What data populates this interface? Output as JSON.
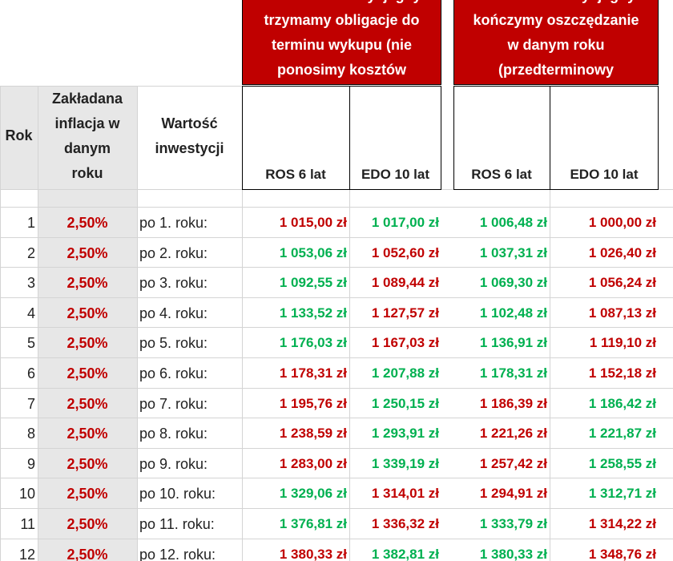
{
  "header": {
    "group_a": {
      "lines": [
        "Wartość inwestycji gdy",
        "trzymamy obligacje  do",
        "terminu wykupu (nie",
        "ponosimy kosztów"
      ]
    },
    "group_b": {
      "lines": [
        "Wartość inwestycji gdy",
        "kończymy oszczędzanie",
        "w danym roku",
        "(przedterminowy"
      ]
    },
    "columns": [
      {
        "lines": [
          "Rok"
        ]
      },
      {
        "lines": [
          "Zakładana",
          "inflacja w",
          "danym",
          "roku"
        ]
      },
      {
        "lines": [
          "Wartość",
          "inwestycji"
        ]
      },
      {
        "lines": [
          "ROS 6 lat"
        ]
      },
      {
        "lines": [
          "EDO 10 lat"
        ]
      },
      {
        "lines": [
          "ROS 6 lat"
        ]
      },
      {
        "lines": [
          "EDO 10 lat"
        ]
      }
    ]
  },
  "table": {
    "rows": [
      {
        "cells": [
          "1",
          "2,50%",
          "po 1. roku:",
          "1 015,00 zł",
          "1 017,00 zł",
          "1 006,48 zł",
          "1 000,00 zł"
        ],
        "colors": [
          "#c00000",
          "#00b050",
          "#00b050",
          "#c00000"
        ]
      },
      {
        "cells": [
          "2",
          "2,50%",
          "po 2. roku:",
          "1 053,06 zł",
          "1 052,60 zł",
          "1 037,31 zł",
          "1 026,40 zł"
        ],
        "colors": [
          "#00b050",
          "#c00000",
          "#00b050",
          "#c00000"
        ]
      },
      {
        "cells": [
          "3",
          "2,50%",
          "po 3. roku:",
          "1 092,55 zł",
          "1 089,44 zł",
          "1 069,30 zł",
          "1 056,24 zł"
        ],
        "colors": [
          "#00b050",
          "#c00000",
          "#00b050",
          "#c00000"
        ]
      },
      {
        "cells": [
          "4",
          "2,50%",
          "po 4. roku:",
          "1 133,52 zł",
          "1 127,57 zł",
          "1 102,48 zł",
          "1 087,13 zł"
        ],
        "colors": [
          "#00b050",
          "#c00000",
          "#00b050",
          "#c00000"
        ]
      },
      {
        "cells": [
          "5",
          "2,50%",
          "po 5. roku:",
          "1 176,03 zł",
          "1 167,03 zł",
          "1 136,91 zł",
          "1 119,10 zł"
        ],
        "colors": [
          "#00b050",
          "#c00000",
          "#00b050",
          "#c00000"
        ]
      },
      {
        "cells": [
          "6",
          "2,50%",
          "po 6. roku:",
          "1 178,31 zł",
          "1 207,88 zł",
          "1 178,31 zł",
          "1 152,18 zł"
        ],
        "colors": [
          "#c00000",
          "#00b050",
          "#00b050",
          "#c00000"
        ]
      },
      {
        "cells": [
          "7",
          "2,50%",
          "po 7. roku:",
          "1 195,76 zł",
          "1 250,15 zł",
          "1 186,39 zł",
          "1 186,42 zł"
        ],
        "colors": [
          "#c00000",
          "#00b050",
          "#c00000",
          "#00b050"
        ]
      },
      {
        "cells": [
          "8",
          "2,50%",
          "po 8. roku:",
          "1 238,59 zł",
          "1 293,91 zł",
          "1 221,26 zł",
          "1 221,87 zł"
        ],
        "colors": [
          "#c00000",
          "#00b050",
          "#c00000",
          "#00b050"
        ]
      },
      {
        "cells": [
          "9",
          "2,50%",
          "po 9. roku:",
          "1 283,00 zł",
          "1 339,19 zł",
          "1 257,42 zł",
          "1 258,55 zł"
        ],
        "colors": [
          "#c00000",
          "#00b050",
          "#c00000",
          "#00b050"
        ]
      },
      {
        "cells": [
          "10",
          "2,50%",
          "po 10. roku:",
          "1 329,06 zł",
          "1 314,01 zł",
          "1 294,91 zł",
          "1 312,71 zł"
        ],
        "colors": [
          "#00b050",
          "#c00000",
          "#c00000",
          "#00b050"
        ]
      },
      {
        "cells": [
          "11",
          "2,50%",
          "po 11. roku:",
          "1 376,81 zł",
          "1 336,32 zł",
          "1 333,79 zł",
          "1 314,22 zł"
        ],
        "colors": [
          "#00b050",
          "#c00000",
          "#00b050",
          "#c00000"
        ]
      },
      {
        "cells": [
          "12",
          "2,50%",
          "po 12. roku:",
          "1 380,33 zł",
          "1 382,81 zł",
          "1 380,33 zł",
          "1 348,76 zł"
        ],
        "colors": [
          "#c00000",
          "#00b050",
          "#00b050",
          "#c00000"
        ]
      }
    ]
  }
}
